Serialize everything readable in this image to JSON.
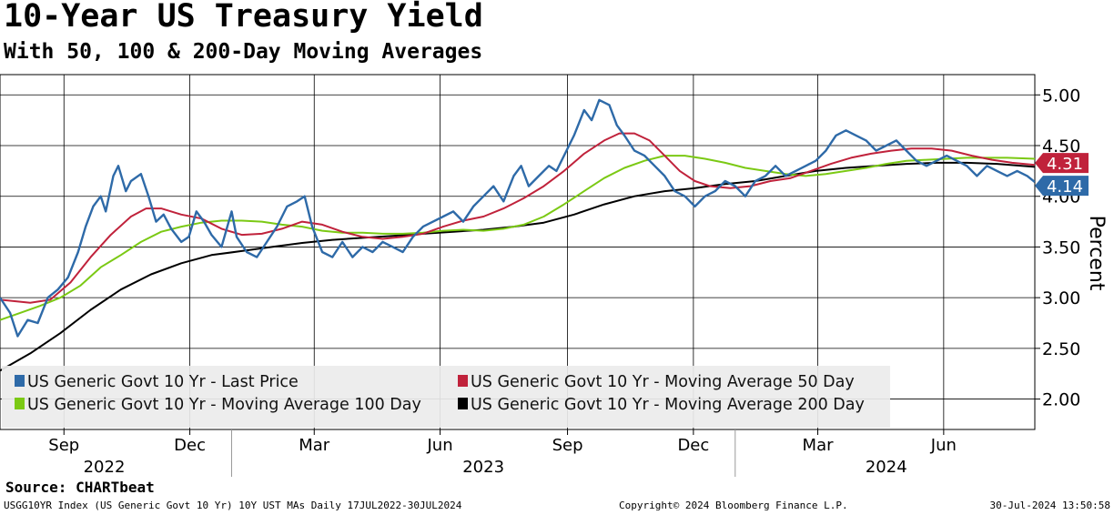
{
  "title": "10-Year US Treasury Yield",
  "subtitle": "With 50, 100 & 200-Day Moving Averages",
  "source": "Source: CHARTbeat",
  "footer": {
    "left": "USGG10YR Index (US Generic Govt 10 Yr) 10Y UST MAs  Daily 17JUL2022-30JUL2024",
    "middle": "Copyright© 2024 Bloomberg Finance L.P.",
    "right": "30-Jul-2024 13:50:58"
  },
  "chart_data": {
    "type": "line",
    "ylabel": "Percent",
    "ylim": [
      1.7,
      5.2
    ],
    "yticks": [
      "5.00",
      "4.50",
      "4.00",
      "3.50",
      "3.00",
      "2.50",
      "2.00"
    ],
    "y_tick_values": [
      5.0,
      4.5,
      4.0,
      3.5,
      3.0,
      2.5,
      2.0
    ],
    "x_range": [
      2022.54,
      2024.595
    ],
    "month_ticks": [
      {
        "label": "Sep",
        "t": 2022.667
      },
      {
        "label": "Dec",
        "t": 2022.917
      },
      {
        "label": "Mar",
        "t": 2023.164
      },
      {
        "label": "Jun",
        "t": 2023.414
      },
      {
        "label": "Sep",
        "t": 2023.667
      },
      {
        "label": "Dec",
        "t": 2023.917
      },
      {
        "label": "Mar",
        "t": 2024.164
      },
      {
        "label": "Jun",
        "t": 2024.414
      }
    ],
    "month_gridlines": [
      2022.667,
      2022.917,
      2023.164,
      2023.414,
      2023.667,
      2023.917,
      2024.164,
      2024.414
    ],
    "years": [
      {
        "label": "2022",
        "t": 2022.747
      },
      {
        "label": "2023",
        "t": 2023.5
      },
      {
        "label": "2024",
        "t": 2024.3
      }
    ],
    "year_dividers": [
      2023.0,
      2024.0
    ],
    "series": [
      {
        "name": "US Generic Govt 10 Yr - Last Price",
        "color": "#2e6aa8",
        "points": [
          [
            2022.54,
            3.0
          ],
          [
            2022.56,
            2.85
          ],
          [
            2022.575,
            2.62
          ],
          [
            2022.595,
            2.78
          ],
          [
            2022.615,
            2.75
          ],
          [
            2022.635,
            3.0
          ],
          [
            2022.655,
            3.08
          ],
          [
            2022.675,
            3.2
          ],
          [
            2022.695,
            3.45
          ],
          [
            2022.71,
            3.7
          ],
          [
            2022.725,
            3.9
          ],
          [
            2022.74,
            4.0
          ],
          [
            2022.75,
            3.85
          ],
          [
            2022.765,
            4.2
          ],
          [
            2022.775,
            4.3
          ],
          [
            2022.79,
            4.05
          ],
          [
            2022.8,
            4.15
          ],
          [
            2022.82,
            4.22
          ],
          [
            2022.835,
            4.0
          ],
          [
            2022.85,
            3.75
          ],
          [
            2022.865,
            3.82
          ],
          [
            2022.88,
            3.68
          ],
          [
            2022.9,
            3.55
          ],
          [
            2022.915,
            3.6
          ],
          [
            2022.93,
            3.85
          ],
          [
            2022.945,
            3.75
          ],
          [
            2022.96,
            3.62
          ],
          [
            2022.98,
            3.5
          ],
          [
            2023.0,
            3.85
          ],
          [
            2023.01,
            3.6
          ],
          [
            2023.03,
            3.45
          ],
          [
            2023.05,
            3.4
          ],
          [
            2023.07,
            3.55
          ],
          [
            2023.09,
            3.7
          ],
          [
            2023.11,
            3.9
          ],
          [
            2023.13,
            3.95
          ],
          [
            2023.145,
            4.0
          ],
          [
            2023.16,
            3.7
          ],
          [
            2023.18,
            3.45
          ],
          [
            2023.2,
            3.4
          ],
          [
            2023.22,
            3.55
          ],
          [
            2023.24,
            3.4
          ],
          [
            2023.26,
            3.5
          ],
          [
            2023.28,
            3.45
          ],
          [
            2023.3,
            3.55
          ],
          [
            2023.32,
            3.5
          ],
          [
            2023.34,
            3.45
          ],
          [
            2023.36,
            3.6
          ],
          [
            2023.38,
            3.7
          ],
          [
            2023.4,
            3.75
          ],
          [
            2023.42,
            3.8
          ],
          [
            2023.44,
            3.85
          ],
          [
            2023.46,
            3.75
          ],
          [
            2023.48,
            3.9
          ],
          [
            2023.5,
            4.0
          ],
          [
            2023.52,
            4.1
          ],
          [
            2023.54,
            3.95
          ],
          [
            2023.56,
            4.2
          ],
          [
            2023.575,
            4.3
          ],
          [
            2023.59,
            4.1
          ],
          [
            2023.61,
            4.2
          ],
          [
            2023.63,
            4.3
          ],
          [
            2023.645,
            4.25
          ],
          [
            2023.66,
            4.4
          ],
          [
            2023.68,
            4.6
          ],
          [
            2023.7,
            4.85
          ],
          [
            2023.715,
            4.75
          ],
          [
            2023.73,
            4.95
          ],
          [
            2023.75,
            4.9
          ],
          [
            2023.765,
            4.7
          ],
          [
            2023.78,
            4.6
          ],
          [
            2023.8,
            4.45
          ],
          [
            2023.82,
            4.4
          ],
          [
            2023.84,
            4.3
          ],
          [
            2023.86,
            4.2
          ],
          [
            2023.88,
            4.05
          ],
          [
            2023.9,
            4.0
          ],
          [
            2023.92,
            3.9
          ],
          [
            2023.94,
            4.0
          ],
          [
            2023.96,
            4.05
          ],
          [
            2023.98,
            4.15
          ],
          [
            2024.0,
            4.1
          ],
          [
            2024.02,
            4.0
          ],
          [
            2024.04,
            4.15
          ],
          [
            2024.06,
            4.2
          ],
          [
            2024.08,
            4.3
          ],
          [
            2024.1,
            4.2
          ],
          [
            2024.12,
            4.25
          ],
          [
            2024.14,
            4.3
          ],
          [
            2024.16,
            4.35
          ],
          [
            2024.18,
            4.45
          ],
          [
            2024.2,
            4.6
          ],
          [
            2024.22,
            4.65
          ],
          [
            2024.24,
            4.6
          ],
          [
            2024.26,
            4.55
          ],
          [
            2024.28,
            4.45
          ],
          [
            2024.3,
            4.5
          ],
          [
            2024.32,
            4.55
          ],
          [
            2024.34,
            4.45
          ],
          [
            2024.36,
            4.35
          ],
          [
            2024.38,
            4.3
          ],
          [
            2024.4,
            4.35
          ],
          [
            2024.42,
            4.4
          ],
          [
            2024.44,
            4.35
          ],
          [
            2024.46,
            4.3
          ],
          [
            2024.48,
            4.2
          ],
          [
            2024.5,
            4.3
          ],
          [
            2024.52,
            4.25
          ],
          [
            2024.54,
            4.2
          ],
          [
            2024.56,
            4.25
          ],
          [
            2024.58,
            4.2
          ],
          [
            2024.595,
            4.14
          ]
        ]
      },
      {
        "name": "US Generic Govt 10 Yr - Moving Average 50 Day",
        "color": "#c0223b",
        "points": [
          [
            2022.54,
            2.98
          ],
          [
            2022.6,
            2.95
          ],
          [
            2022.64,
            2.98
          ],
          [
            2022.68,
            3.15
          ],
          [
            2022.72,
            3.4
          ],
          [
            2022.76,
            3.62
          ],
          [
            2022.8,
            3.8
          ],
          [
            2022.83,
            3.88
          ],
          [
            2022.86,
            3.88
          ],
          [
            2022.9,
            3.82
          ],
          [
            2022.94,
            3.78
          ],
          [
            2022.98,
            3.68
          ],
          [
            2023.02,
            3.62
          ],
          [
            2023.06,
            3.63
          ],
          [
            2023.1,
            3.68
          ],
          [
            2023.14,
            3.75
          ],
          [
            2023.18,
            3.72
          ],
          [
            2023.22,
            3.65
          ],
          [
            2023.26,
            3.6
          ],
          [
            2023.3,
            3.58
          ],
          [
            2023.34,
            3.6
          ],
          [
            2023.38,
            3.63
          ],
          [
            2023.42,
            3.7
          ],
          [
            2023.46,
            3.76
          ],
          [
            2023.5,
            3.8
          ],
          [
            2023.54,
            3.88
          ],
          [
            2023.58,
            3.98
          ],
          [
            2023.62,
            4.1
          ],
          [
            2023.66,
            4.25
          ],
          [
            2023.7,
            4.42
          ],
          [
            2023.74,
            4.55
          ],
          [
            2023.77,
            4.62
          ],
          [
            2023.8,
            4.62
          ],
          [
            2023.83,
            4.55
          ],
          [
            2023.86,
            4.4
          ],
          [
            2023.89,
            4.25
          ],
          [
            2023.92,
            4.15
          ],
          [
            2023.95,
            4.1
          ],
          [
            2023.99,
            4.08
          ],
          [
            2024.03,
            4.1
          ],
          [
            2024.07,
            4.15
          ],
          [
            2024.11,
            4.18
          ],
          [
            2024.15,
            4.25
          ],
          [
            2024.19,
            4.32
          ],
          [
            2024.23,
            4.38
          ],
          [
            2024.27,
            4.42
          ],
          [
            2024.31,
            4.45
          ],
          [
            2024.35,
            4.47
          ],
          [
            2024.39,
            4.47
          ],
          [
            2024.43,
            4.45
          ],
          [
            2024.47,
            4.4
          ],
          [
            2024.51,
            4.36
          ],
          [
            2024.55,
            4.33
          ],
          [
            2024.595,
            4.31
          ]
        ]
      },
      {
        "name": "US Generic Govt 10 Yr - Moving Average 100 Day",
        "color": "#7bc914",
        "points": [
          [
            2022.54,
            2.78
          ],
          [
            2022.58,
            2.85
          ],
          [
            2022.62,
            2.92
          ],
          [
            2022.66,
            3.0
          ],
          [
            2022.7,
            3.12
          ],
          [
            2022.74,
            3.3
          ],
          [
            2022.78,
            3.42
          ],
          [
            2022.82,
            3.55
          ],
          [
            2022.86,
            3.65
          ],
          [
            2022.9,
            3.7
          ],
          [
            2022.94,
            3.74
          ],
          [
            2022.98,
            3.76
          ],
          [
            2023.02,
            3.76
          ],
          [
            2023.06,
            3.75
          ],
          [
            2023.1,
            3.72
          ],
          [
            2023.14,
            3.7
          ],
          [
            2023.18,
            3.66
          ],
          [
            2023.22,
            3.64
          ],
          [
            2023.26,
            3.64
          ],
          [
            2023.3,
            3.63
          ],
          [
            2023.34,
            3.63
          ],
          [
            2023.38,
            3.64
          ],
          [
            2023.42,
            3.66
          ],
          [
            2023.46,
            3.67
          ],
          [
            2023.5,
            3.66
          ],
          [
            2023.54,
            3.68
          ],
          [
            2023.58,
            3.72
          ],
          [
            2023.62,
            3.8
          ],
          [
            2023.66,
            3.92
          ],
          [
            2023.7,
            4.05
          ],
          [
            2023.74,
            4.18
          ],
          [
            2023.78,
            4.28
          ],
          [
            2023.82,
            4.35
          ],
          [
            2023.86,
            4.4
          ],
          [
            2023.9,
            4.4
          ],
          [
            2023.94,
            4.37
          ],
          [
            2023.98,
            4.33
          ],
          [
            2024.02,
            4.28
          ],
          [
            2024.06,
            4.25
          ],
          [
            2024.1,
            4.22
          ],
          [
            2024.14,
            4.2
          ],
          [
            2024.18,
            4.22
          ],
          [
            2024.22,
            4.25
          ],
          [
            2024.26,
            4.28
          ],
          [
            2024.3,
            4.32
          ],
          [
            2024.34,
            4.35
          ],
          [
            2024.38,
            4.36
          ],
          [
            2024.42,
            4.37
          ],
          [
            2024.46,
            4.38
          ],
          [
            2024.5,
            4.38
          ],
          [
            2024.54,
            4.38
          ],
          [
            2024.595,
            4.37
          ]
        ]
      },
      {
        "name": "US Generic Govt 10 Yr - Moving Average 200 Day",
        "color": "#000000",
        "points": [
          [
            2022.54,
            2.28
          ],
          [
            2022.6,
            2.45
          ],
          [
            2022.66,
            2.65
          ],
          [
            2022.72,
            2.88
          ],
          [
            2022.78,
            3.08
          ],
          [
            2022.84,
            3.23
          ],
          [
            2022.9,
            3.34
          ],
          [
            2022.96,
            3.42
          ],
          [
            2023.02,
            3.46
          ],
          [
            2023.08,
            3.5
          ],
          [
            2023.14,
            3.54
          ],
          [
            2023.2,
            3.57
          ],
          [
            2023.26,
            3.59
          ],
          [
            2023.32,
            3.61
          ],
          [
            2023.38,
            3.63
          ],
          [
            2023.44,
            3.65
          ],
          [
            2023.5,
            3.67
          ],
          [
            2023.56,
            3.7
          ],
          [
            2023.62,
            3.74
          ],
          [
            2023.68,
            3.82
          ],
          [
            2023.74,
            3.92
          ],
          [
            2023.8,
            4.0
          ],
          [
            2023.86,
            4.05
          ],
          [
            2023.92,
            4.08
          ],
          [
            2023.98,
            4.12
          ],
          [
            2024.04,
            4.15
          ],
          [
            2024.1,
            4.2
          ],
          [
            2024.16,
            4.25
          ],
          [
            2024.22,
            4.28
          ],
          [
            2024.28,
            4.3
          ],
          [
            2024.34,
            4.32
          ],
          [
            2024.4,
            4.33
          ],
          [
            2024.46,
            4.33
          ],
          [
            2024.52,
            4.32
          ],
          [
            2024.595,
            4.29
          ]
        ]
      }
    ],
    "last_value_labels": [
      {
        "text": "4.31",
        "value": 4.31,
        "color": "#c0223b"
      },
      {
        "text": "4.14",
        "value": 4.14,
        "color": "#2e6aa8"
      }
    ],
    "legend": {
      "placement": "bottom-left",
      "items": [
        {
          "label": "US Generic Govt 10 Yr - Last Price",
          "color": "#2e6aa8"
        },
        {
          "label": "US Generic Govt 10 Yr - Moving Average 50 Day",
          "color": "#c0223b"
        },
        {
          "label": "US Generic Govt 10 Yr - Moving Average 100 Day",
          "color": "#7bc914"
        },
        {
          "label": "US Generic Govt 10 Yr - Moving Average 200 Day",
          "color": "#000000"
        }
      ]
    }
  }
}
